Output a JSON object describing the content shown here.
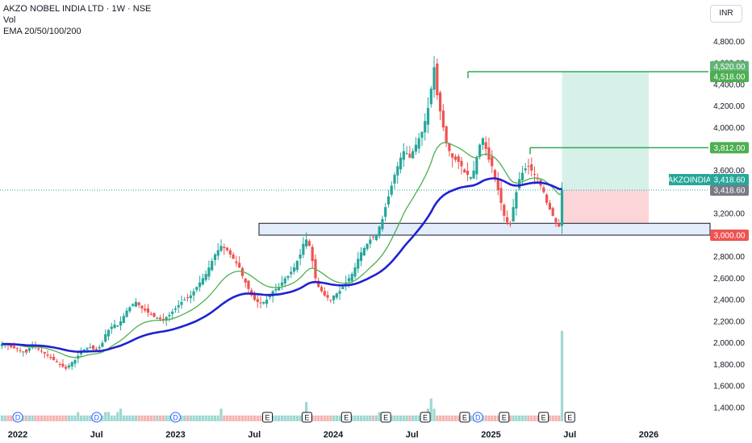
{
  "legend": {
    "symbol_line": "AKZO NOBEL INDIA LTD · 1W · NSE",
    "vol_label": "Vol",
    "ema_label": "EMA 20/50/100/200"
  },
  "currency": "INR",
  "colors": {
    "up": "#26a69a",
    "down": "#ef5350",
    "ema_short": "#4caf50",
    "ema_long": "#1e22d2",
    "target_zone": "#d7f1ea",
    "stop_zone": "#fbd5d8",
    "support_zone": "#e3ecfb",
    "level_line": "#34a853",
    "current_price": "#787b86"
  },
  "chart_data": {
    "type": "candlestick",
    "price_axis": {
      "ticks": [
        "4,800.00",
        "4,600.00",
        "4,400.00",
        "4,200.00",
        "4,000.00",
        "3,800.00",
        "3,600.00",
        "3,200.00",
        "3,000.00",
        "2,800.00",
        "2,600.00",
        "2,400.00",
        "2,200.00",
        "2,000.00",
        "1,800.00",
        "1,600.00",
        "1,400.00"
      ],
      "tick_values": [
        4800,
        4600,
        4400,
        4200,
        4000,
        3800,
        3600,
        3200,
        3000,
        2800,
        2600,
        2400,
        2200,
        2000,
        1800,
        1600,
        1400
      ]
    },
    "time_axis": [
      "2022",
      "Jul",
      "2023",
      "Jul",
      "2024",
      "Jul",
      "2025",
      "Jul",
      "2026"
    ],
    "price_labels": [
      {
        "text": "4,520.00",
        "value": 4520,
        "kind": "target"
      },
      {
        "text": "4,518.00",
        "value": 4518,
        "kind": "level"
      },
      {
        "text": "3,812.00",
        "value": 3812,
        "kind": "level"
      },
      {
        "text": "3,418.60",
        "value": 3418.6,
        "kind": "current"
      },
      {
        "text": "3,000.00",
        "value": 3000,
        "kind": "stop"
      }
    ],
    "symbol_badge": {
      "name": "AKZOINDIA",
      "price": "3,418.60"
    },
    "support_zone": {
      "low": 3000,
      "high": 3110
    },
    "position": {
      "entry": 3418.6,
      "target": 4520,
      "stop": 3000
    },
    "horizontal_levels": [
      4518,
      3812
    ],
    "events": [
      {
        "label": "D",
        "period": "2022-01"
      },
      {
        "label": "D",
        "period": "2022-07"
      },
      {
        "label": "D",
        "period": "2023-01"
      },
      {
        "label": "E",
        "period": "2023-08"
      },
      {
        "label": "E",
        "period": "2023-11"
      },
      {
        "label": "E",
        "period": "2024-02"
      },
      {
        "label": "E",
        "period": "2024-05"
      },
      {
        "label": "E",
        "period": "2024-08"
      },
      {
        "label": "E",
        "period": "2024-11"
      },
      {
        "label": "D",
        "period": "2024-12"
      },
      {
        "label": "E",
        "period": "2025-02"
      },
      {
        "label": "E",
        "period": "2025-05"
      },
      {
        "label": "E",
        "period": "2025-07"
      }
    ],
    "closes_approx": [
      1990,
      1985,
      1975,
      1960,
      1950,
      1945,
      1930,
      1920,
      1910,
      1950,
      1980,
      1960,
      1940,
      1920,
      1900,
      1880,
      1860,
      1840,
      1820,
      1800,
      1780,
      1760,
      1790,
      1820,
      1840,
      1880,
      1920,
      1940,
      1950,
      1960,
      1940,
      1930,
      1960,
      2000,
      2080,
      2120,
      2150,
      2170,
      2160,
      2200,
      2250,
      2300,
      2330,
      2360,
      2380,
      2350,
      2320,
      2300,
      2280,
      2260,
      2240,
      2230,
      2220,
      2210,
      2240,
      2260,
      2290,
      2320,
      2350,
      2380,
      2400,
      2420,
      2440,
      2480,
      2520,
      2560,
      2600,
      2640,
      2700,
      2760,
      2820,
      2860,
      2900,
      2880,
      2860,
      2820,
      2780,
      2740,
      2700,
      2620,
      2560,
      2500,
      2440,
      2400,
      2380,
      2370,
      2380,
      2400,
      2440,
      2480,
      2500,
      2520,
      2560,
      2600,
      2620,
      2660,
      2700,
      2760,
      2820,
      2920,
      2960,
      2900,
      2760,
      2600,
      2520,
      2480,
      2440,
      2420,
      2400,
      2440,
      2460,
      2480,
      2520,
      2560,
      2600,
      2640,
      2700,
      2780,
      2840,
      2880,
      2920,
      2960,
      2980,
      3000,
      3080,
      3150,
      3260,
      3360,
      3460,
      3560,
      3640,
      3720,
      3780,
      3760,
      3720,
      3780,
      3840,
      3900,
      3960,
      4060,
      4180,
      4360,
      4560,
      4300,
      4150,
      4000,
      3860,
      3780,
      3720,
      3700,
      3680,
      3640,
      3580,
      3560,
      3540,
      3600,
      3720,
      3840,
      3900,
      3800,
      3700,
      3640,
      3520,
      3420,
      3300,
      3180,
      3120,
      3100,
      3260,
      3400,
      3520,
      3580,
      3620,
      3640,
      3600,
      3560,
      3520,
      3460,
      3400,
      3300,
      3240,
      3180,
      3120,
      3080,
      3420
    ],
    "volumes_approx": [
      1,
      1,
      1,
      1,
      1,
      2,
      1,
      1,
      1,
      1,
      1,
      1,
      1,
      1,
      1,
      1,
      1,
      1,
      1,
      1,
      1,
      1,
      1,
      1,
      1,
      2,
      1,
      1,
      1,
      1,
      1,
      1,
      1,
      1,
      2,
      2,
      1,
      1,
      2,
      3,
      1,
      1,
      1,
      1,
      1,
      1,
      1,
      1,
      1,
      1,
      1,
      1,
      1,
      1,
      1,
      1,
      1,
      1,
      1,
      1,
      1,
      1,
      1,
      1,
      1,
      1,
      1,
      1,
      1,
      1,
      1,
      1,
      3,
      1,
      1,
      1,
      1,
      1,
      1,
      1,
      1,
      1,
      1,
      1,
      1,
      1,
      1,
      1,
      1,
      1,
      1,
      1,
      1,
      1,
      1,
      1,
      1,
      1,
      1,
      1,
      5,
      1,
      1,
      1,
      1,
      1,
      1,
      1,
      1,
      1,
      1,
      1,
      1,
      1,
      1,
      1,
      1,
      1,
      1,
      1,
      1,
      1,
      1,
      1,
      2,
      2,
      1,
      1,
      1,
      1,
      1,
      1,
      1,
      1,
      1,
      1,
      1,
      1,
      1,
      2,
      3,
      6,
      3,
      1,
      1,
      1,
      1,
      1,
      1,
      1,
      1,
      1,
      1,
      1,
      1,
      1,
      1,
      1,
      1,
      1,
      1,
      1,
      1,
      1,
      1,
      1,
      1,
      1,
      1,
      1,
      1,
      1,
      1,
      1,
      1,
      1,
      1,
      1,
      1,
      1,
      1,
      1,
      1,
      1,
      26
    ]
  }
}
